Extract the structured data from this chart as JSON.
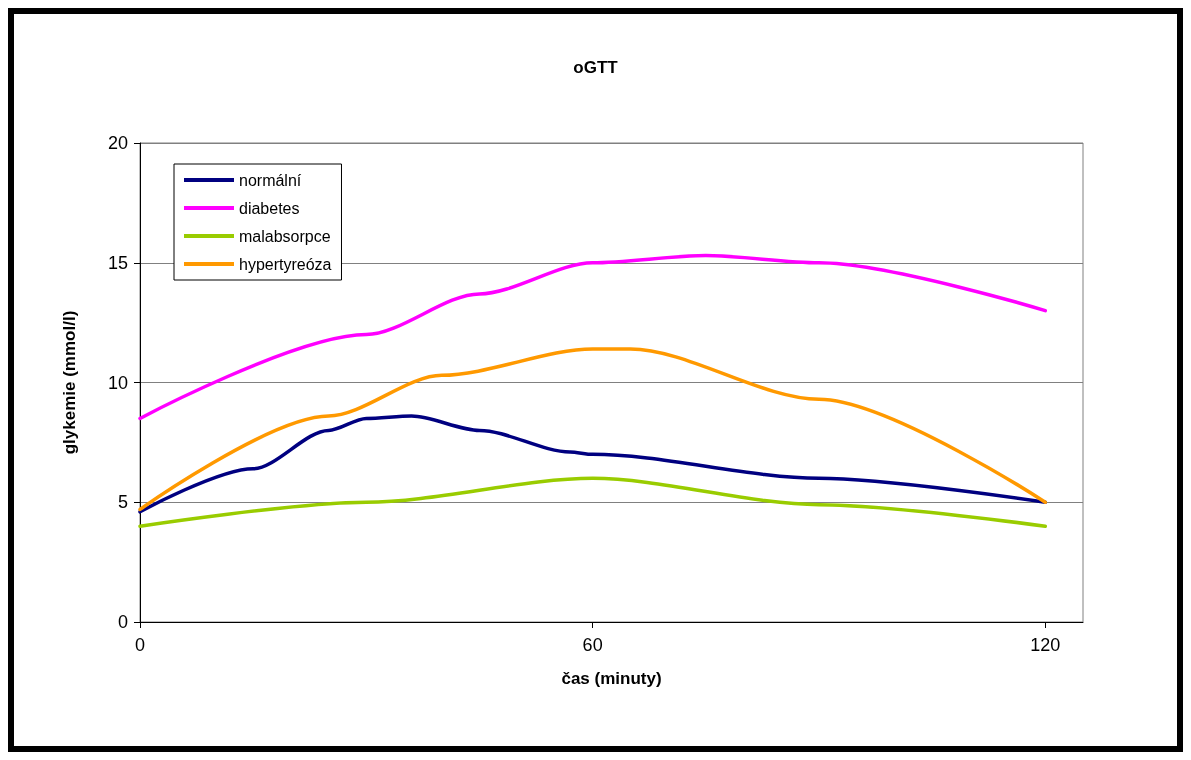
{
  "chart_data": {
    "type": "line",
    "title": "oGTT",
    "xlabel": "čas (minuty)",
    "ylabel": "glykemie (mmol/l)",
    "xlim": [
      0,
      125
    ],
    "xticks": [
      0,
      60,
      120
    ],
    "ylim": [
      0,
      20
    ],
    "yticks": [
      0,
      5,
      10,
      15,
      20
    ],
    "grid": "y",
    "legend": "top left",
    "marker": "none",
    "line_style": "solid",
    "series": [
      {
        "name": "normální",
        "color": "#000080",
        "x": [
          0,
          15,
          25,
          30,
          36,
          45,
          57,
          60,
          90,
          120
        ],
        "values": [
          4.6,
          6.4,
          8.0,
          8.5,
          8.6,
          8.0,
          7.1,
          7.0,
          6.0,
          5.0
        ]
      },
      {
        "name": "diabetes",
        "color": "#ff00ff",
        "x": [
          0,
          30,
          45,
          60,
          75,
          90,
          120
        ],
        "values": [
          8.5,
          12.0,
          13.7,
          15.0,
          15.3,
          15.0,
          13.0
        ]
      },
      {
        "name": "malabsorpce",
        "color": "#99cc00",
        "x": [
          0,
          30,
          60,
          90,
          120
        ],
        "values": [
          4.0,
          5.0,
          6.0,
          4.9,
          4.0
        ]
      },
      {
        "name": "hypertyreóza",
        "color": "#ff9900",
        "x": [
          0,
          25,
          40,
          60,
          65,
          90,
          120
        ],
        "values": [
          4.7,
          8.6,
          10.3,
          11.4,
          11.4,
          9.3,
          5.0
        ]
      }
    ]
  }
}
